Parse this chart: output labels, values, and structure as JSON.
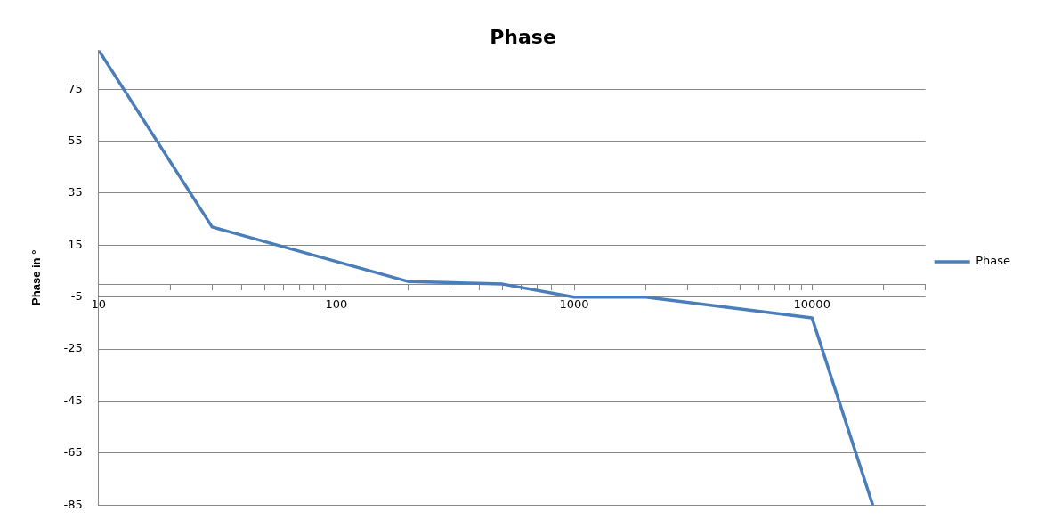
{
  "chart_data": {
    "type": "line",
    "title": "Phase",
    "ylabel": "Phase in °",
    "log": "x",
    "x": [
      10,
      30,
      200,
      500,
      1000,
      2000,
      10000,
      18000
    ],
    "series": [
      {
        "name": "Phase",
        "color": "#4a7ebb",
        "values": [
          90,
          22,
          1,
          0,
          -5,
          -5,
          -13,
          -85
        ]
      }
    ],
    "xlim": [
      10,
      30000
    ],
    "xticks": [
      10,
      {
        "value": 20,
        "label": null
      },
      {
        "value": 30,
        "label": null
      },
      {
        "value": 40,
        "label": null
      },
      {
        "value": 50,
        "label": null
      },
      {
        "value": 60,
        "label": null
      },
      {
        "value": 70,
        "label": null
      },
      {
        "value": 80,
        "label": null
      },
      {
        "value": 90,
        "label": null
      },
      100,
      {
        "value": 200,
        "label": null
      },
      {
        "value": 300,
        "label": null
      },
      {
        "value": 400,
        "label": null
      },
      {
        "value": 500,
        "label": null
      },
      {
        "value": 600,
        "label": null
      },
      {
        "value": 700,
        "label": null
      },
      {
        "value": 800,
        "label": null
      },
      {
        "value": 900,
        "label": null
      },
      1000,
      {
        "value": 2000,
        "label": null
      },
      {
        "value": 3000,
        "label": null
      },
      {
        "value": 4000,
        "label": null
      },
      {
        "value": 5000,
        "label": null
      },
      {
        "value": 6000,
        "label": null
      },
      {
        "value": 7000,
        "label": null
      },
      {
        "value": 8000,
        "label": null
      },
      {
        "value": 9000,
        "label": null
      },
      10000,
      {
        "value": 20000,
        "label": null
      },
      {
        "value": 30000,
        "label": null
      }
    ],
    "ylim": [
      -85,
      90
    ],
    "yticks": [
      -85,
      -65,
      -45,
      -25,
      -5,
      15,
      35,
      55,
      75
    ],
    "grid": "y",
    "legend": "right",
    "marker": "none",
    "line_style": "solid"
  }
}
